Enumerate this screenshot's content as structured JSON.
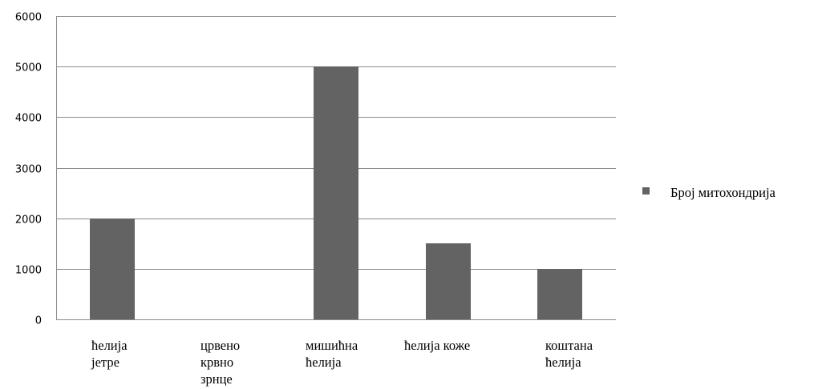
{
  "chart_data": {
    "type": "bar",
    "categories": [
      [
        "ћелија",
        "јетре"
      ],
      [
        "црвено",
        "крвно",
        "зрнце"
      ],
      [
        "мишићна",
        "ћелија"
      ],
      [
        "ћелија коже"
      ],
      [
        "коштана",
        "ћелија"
      ]
    ],
    "series": [
      {
        "name": "Број митохондрија",
        "values": [
          2000,
          0,
          5000,
          1500,
          1000
        ],
        "color": "#636363"
      }
    ],
    "y_ticks": [
      "0",
      "1000",
      "2000",
      "3000",
      "4000",
      "5000",
      "6000"
    ],
    "ylim": [
      0,
      6000
    ],
    "grid": true,
    "legend_position": "right",
    "gridline_color": "#8c8c8c",
    "axis_color": "#8c8c8c"
  }
}
